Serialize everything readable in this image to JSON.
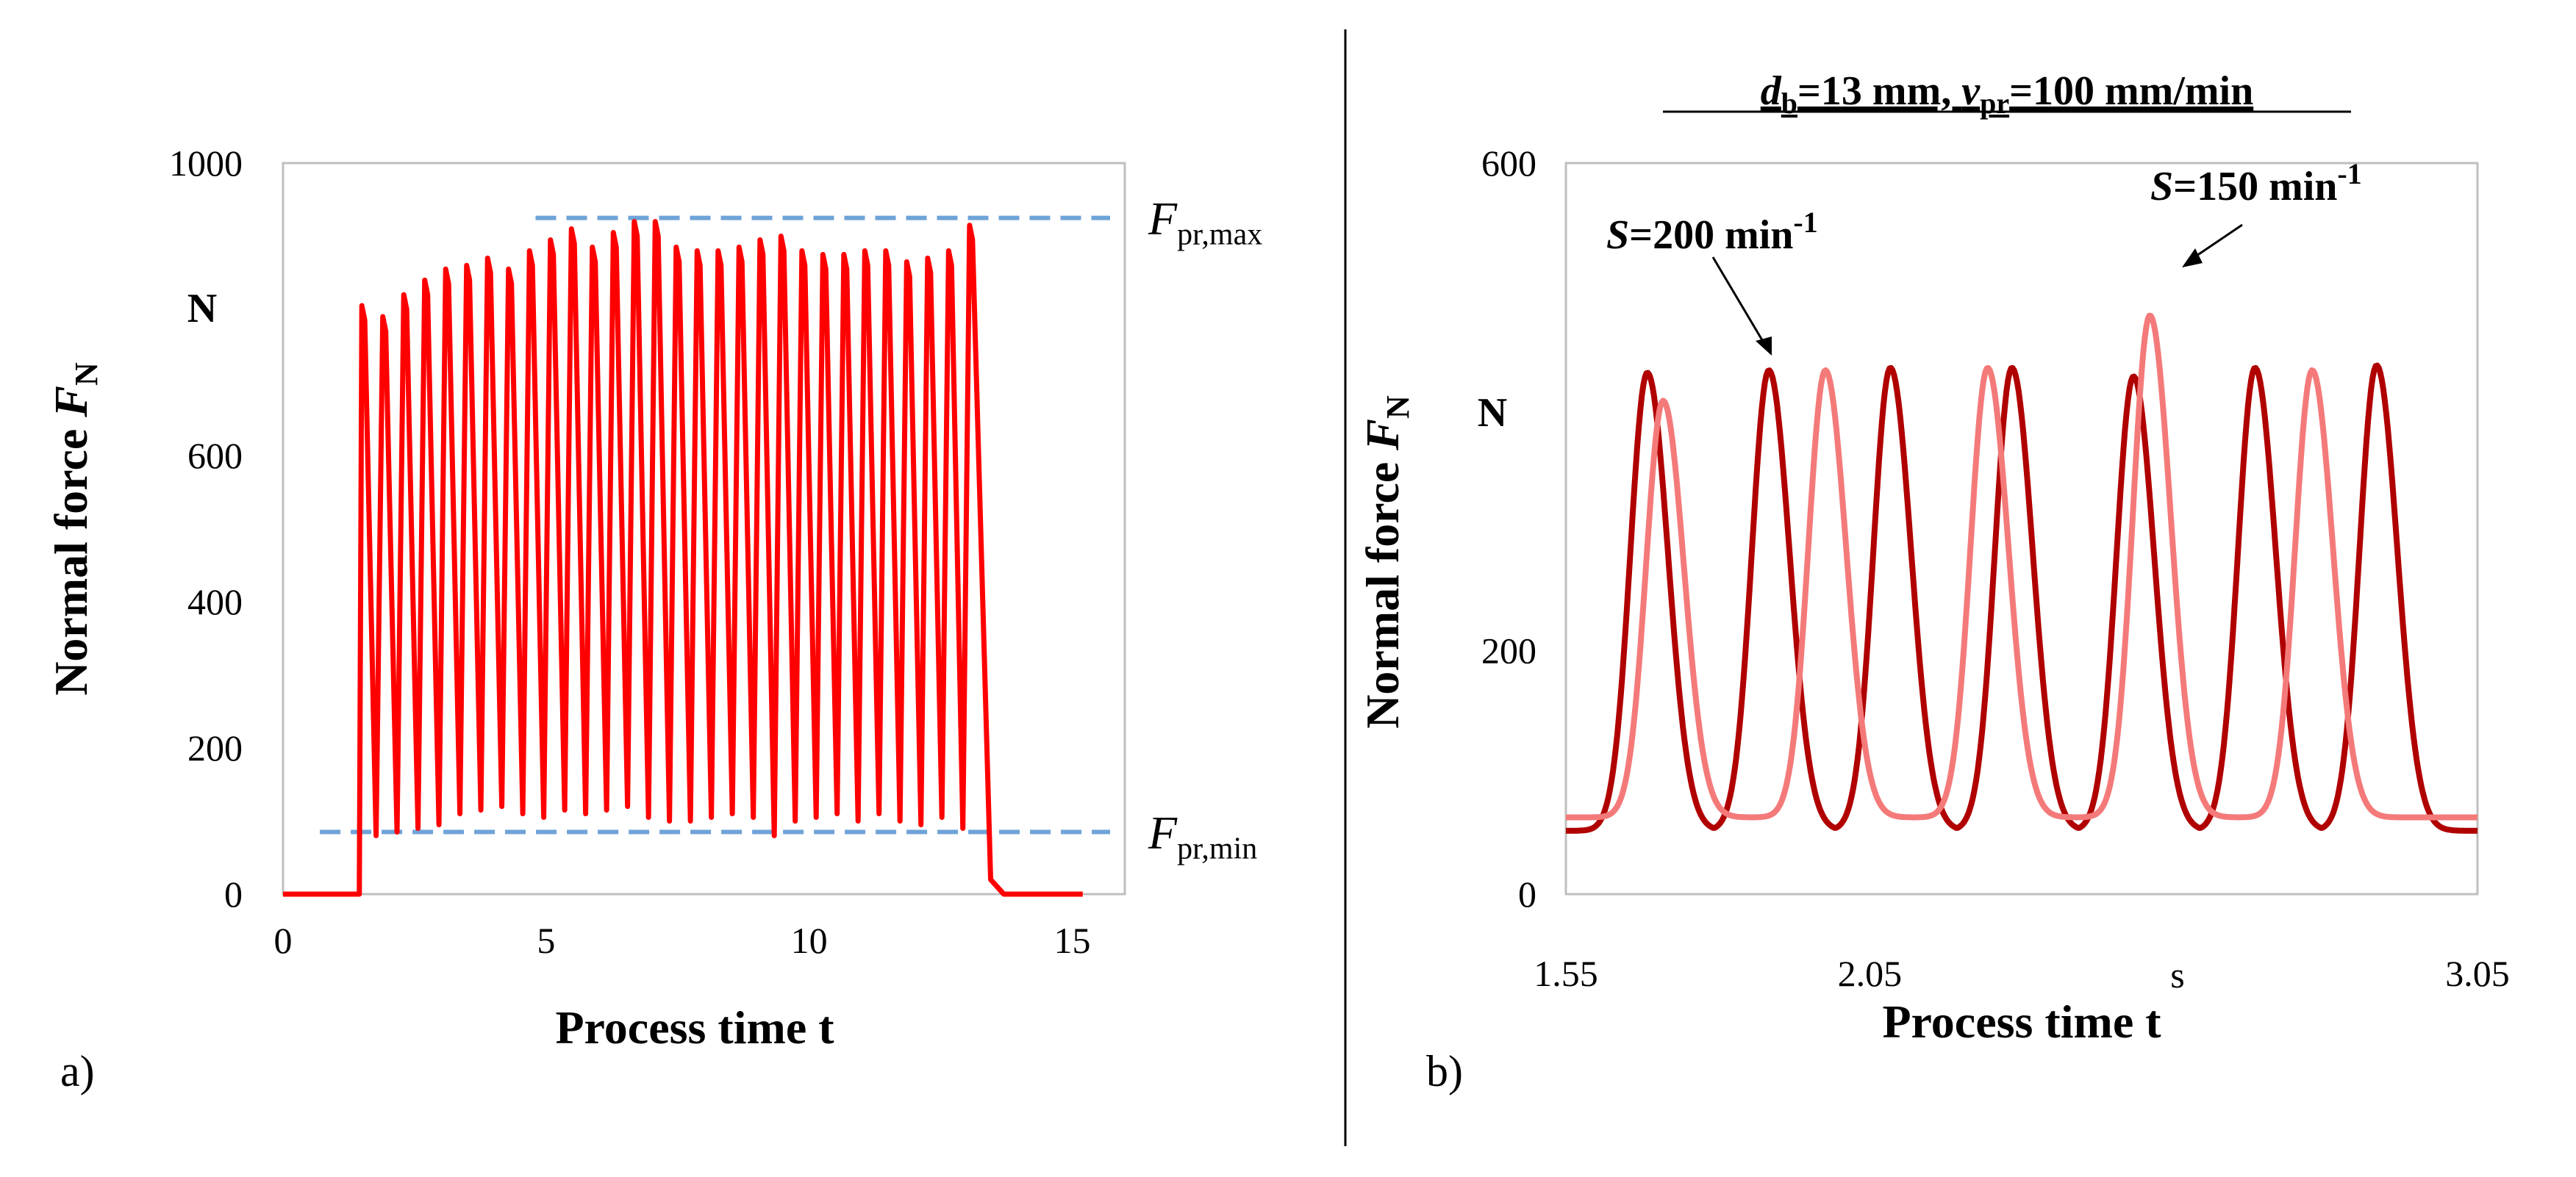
{
  "colors": {
    "series_a": "#ff0000",
    "series_b1": "#b00000",
    "series_b2": "#f47a7a",
    "dashed": "#6fa3d8",
    "frame": "#bfbfbf"
  },
  "chart_data": [
    {
      "type": "line",
      "panel_label": "a)",
      "xlabel": "Process time t",
      "ylabel_main": "Normal force ",
      "ylabel_sym": "F",
      "ylabel_sub": "N",
      "y_unit": "N",
      "xlim": [
        0,
        16
      ],
      "ylim": [
        0,
        1000
      ],
      "x_ticks": [
        0,
        5,
        10,
        15
      ],
      "y_ticks": [
        0,
        200,
        400,
        600,
        1000
      ],
      "x_tick_labels": [
        "0",
        "5",
        "10",
        "15"
      ],
      "y_tick_labels": [
        "0",
        "200",
        "400",
        "600",
        "1000"
      ],
      "series": [
        {
          "name": "Normal force",
          "start": 1.45,
          "end": 13.4,
          "peaks": [
            805,
            790,
            820,
            840,
            855,
            860,
            870,
            855,
            880,
            895,
            910,
            885,
            905,
            920,
            920,
            885,
            880,
            880,
            885,
            895,
            900,
            880,
            875,
            875,
            880,
            880,
            865,
            870,
            880,
            915
          ],
          "valleys": [
            80,
            85,
            90,
            95,
            110,
            115,
            120,
            110,
            105,
            115,
            110,
            115,
            120,
            105,
            100,
            100,
            105,
            110,
            105,
            80,
            100,
            105,
            110,
            100,
            110,
            100,
            95,
            105,
            90,
            110
          ]
        }
      ],
      "reference_lines": [
        {
          "label_sym": "F",
          "label_sub": "pr,max",
          "y": 925,
          "x_start": 4.8,
          "x_end": 16
        },
        {
          "label_sym": "F",
          "label_sub": "pr,min",
          "y": 85,
          "x_start": 0.7,
          "x_end": 16
        }
      ]
    },
    {
      "type": "line",
      "panel_label": "b)",
      "title_parts": [
        "d",
        "b",
        "=13 mm, ",
        "v",
        "pr",
        "=100 mm/min"
      ],
      "xlabel": "Process time t",
      "x_unit": "s",
      "ylabel_main": "Normal force ",
      "ylabel_sym": "F",
      "ylabel_sub": "N",
      "y_unit": "N",
      "xlim": [
        1.55,
        3.05
      ],
      "ylim": [
        0,
        600
      ],
      "x_ticks": [
        1.55,
        2.05,
        3.05
      ],
      "y_ticks": [
        0,
        200,
        600
      ],
      "x_tick_labels": [
        "1.55",
        "2.05",
        "3.05"
      ],
      "y_tick_labels": [
        "0",
        "200",
        "600"
      ],
      "series": [
        {
          "name": "S=200 min-1",
          "period": 0.2,
          "base": 52,
          "peak_times": [
            1.684,
            1.884,
            2.084,
            2.284,
            2.484,
            2.684,
            2.884
          ],
          "peaks": [
            428,
            430,
            432,
            432,
            425,
            432,
            434
          ]
        },
        {
          "name": "S=150 min-1",
          "period": 0.267,
          "base": 63,
          "peak_times": [
            1.71,
            1.977,
            2.244,
            2.511,
            2.778
          ],
          "peaks": [
            405,
            430,
            432,
            475,
            430
          ]
        }
      ],
      "annotations": [
        {
          "sym": "S",
          "text": "=200 min",
          "sup": "-1"
        },
        {
          "sym": "S",
          "text": "=150 min",
          "sup": "-1"
        }
      ]
    }
  ]
}
